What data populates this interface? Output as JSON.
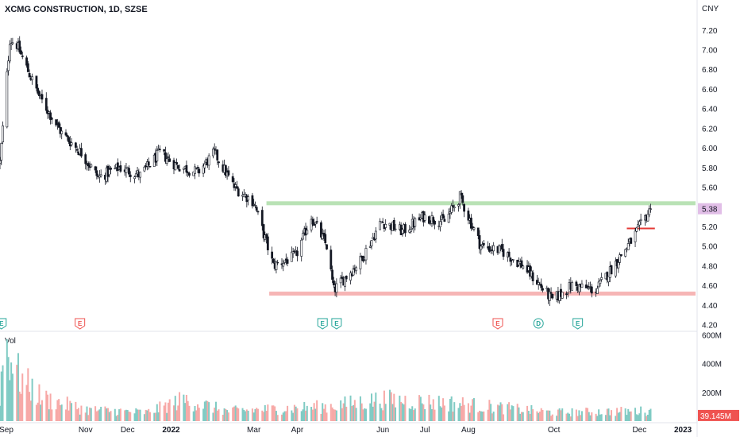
{
  "header": {
    "title": "XCMG CONSTRUCTION, 1D, SZSE"
  },
  "price_axis": {
    "currency": "CNY",
    "ticks": [
      "7.20",
      "7.00",
      "6.80",
      "6.60",
      "6.40",
      "6.20",
      "6.00",
      "5.80",
      "5.60",
      "5.20",
      "5.00",
      "4.80",
      "4.60",
      "4.40",
      "4.20"
    ]
  },
  "last_price": {
    "label": "5.38",
    "value": 5.38
  },
  "volume_axis": {
    "ticks": [
      "600M",
      "400M",
      "200M"
    ],
    "last_label": "39.145M",
    "pane_label": "Vol"
  },
  "time_axis": {
    "labels": [
      "Sep",
      "Nov",
      "Dec",
      "2022",
      "Mar",
      "Apr",
      "Jun",
      "Jul",
      "Aug",
      "Oct",
      "Dec",
      "2023"
    ]
  },
  "events": [
    {
      "type": "earnings",
      "label": "E",
      "color": "#26a69a"
    },
    {
      "type": "earnings",
      "label": "E",
      "color": "#ef5350"
    },
    {
      "type": "earnings",
      "label": "E",
      "color": "#26a69a"
    },
    {
      "type": "earnings",
      "label": "E",
      "color": "#26a69a"
    },
    {
      "type": "earnings",
      "label": "E",
      "color": "#ef5350"
    },
    {
      "type": "dividend",
      "label": "D",
      "color": "#26a69a"
    },
    {
      "type": "earnings",
      "label": "E",
      "color": "#26a69a"
    }
  ],
  "colors": {
    "up": "#26a69a",
    "down": "#ef5350",
    "resistance": "#b9e2b5",
    "support": "#f6b5b5",
    "last_price_bg": "#e1bee7",
    "last_vol_bg": "#ef5350"
  },
  "chart_data": {
    "type": "candlestick",
    "title": "XCMG CONSTRUCTION, 1D, SZSE",
    "price_range": [
      4.14,
      7.36
    ],
    "volume_range": [
      0,
      620000000
    ],
    "x_range": [
      "2021-09-01",
      "2023-01-10"
    ],
    "series_anchors": [
      [
        "2021-09-01",
        5.85
      ],
      [
        "2021-09-03",
        6.2
      ],
      [
        "2021-09-08",
        7.1
      ],
      [
        "2021-09-13",
        7.05
      ],
      [
        "2021-09-22",
        6.75
      ],
      [
        "2021-09-30",
        6.5
      ],
      [
        "2021-10-15",
        6.15
      ],
      [
        "2021-10-29",
        5.95
      ],
      [
        "2021-11-10",
        5.7
      ],
      [
        "2021-11-25",
        5.8
      ],
      [
        "2021-12-10",
        5.72
      ],
      [
        "2021-12-24",
        5.95
      ],
      [
        "2022-01-05",
        5.82
      ],
      [
        "2022-01-20",
        5.75
      ],
      [
        "2022-02-01",
        5.95
      ],
      [
        "2022-02-15",
        5.6
      ],
      [
        "2022-03-01",
        5.45
      ],
      [
        "2022-03-15",
        4.8
      ],
      [
        "2022-03-31",
        4.9
      ],
      [
        "2022-04-11",
        5.3
      ],
      [
        "2022-04-22",
        5.0
      ],
      [
        "2022-04-27",
        4.55
      ],
      [
        "2022-05-16",
        4.85
      ],
      [
        "2022-05-31",
        5.25
      ],
      [
        "2022-06-15",
        5.15
      ],
      [
        "2022-06-30",
        5.3
      ],
      [
        "2022-07-15",
        5.25
      ],
      [
        "2022-07-26",
        5.5
      ],
      [
        "2022-08-10",
        5.0
      ],
      [
        "2022-08-25",
        4.95
      ],
      [
        "2022-09-09",
        4.8
      ],
      [
        "2022-09-30",
        4.45
      ],
      [
        "2022-10-14",
        4.6
      ],
      [
        "2022-10-31",
        4.55
      ],
      [
        "2022-11-10",
        4.75
      ],
      [
        "2022-11-25",
        5.05
      ],
      [
        "2022-12-09",
        5.38
      ]
    ],
    "resistance_level": 5.44,
    "support_level": 4.52,
    "marker_level": 5.18,
    "last_price": 5.38,
    "last_volume": 39145000,
    "volume_sample": [
      [
        "2021-09-01",
        180000000
      ],
      [
        "2021-09-03",
        430000000
      ],
      [
        "2021-09-06",
        530000000
      ],
      [
        "2021-09-08",
        470000000
      ],
      [
        "2021-09-15",
        300000000
      ],
      [
        "2021-10-01",
        160000000
      ],
      [
        "2021-11-01",
        80000000
      ],
      [
        "2021-12-15",
        60000000
      ],
      [
        "2022-01-10",
        150000000
      ],
      [
        "2022-02-10",
        70000000
      ],
      [
        "2022-04-20",
        100000000
      ],
      [
        "2022-06-01",
        150000000
      ],
      [
        "2022-07-26",
        120000000
      ],
      [
        "2022-10-01",
        60000000
      ],
      [
        "2022-12-01",
        70000000
      ]
    ]
  }
}
